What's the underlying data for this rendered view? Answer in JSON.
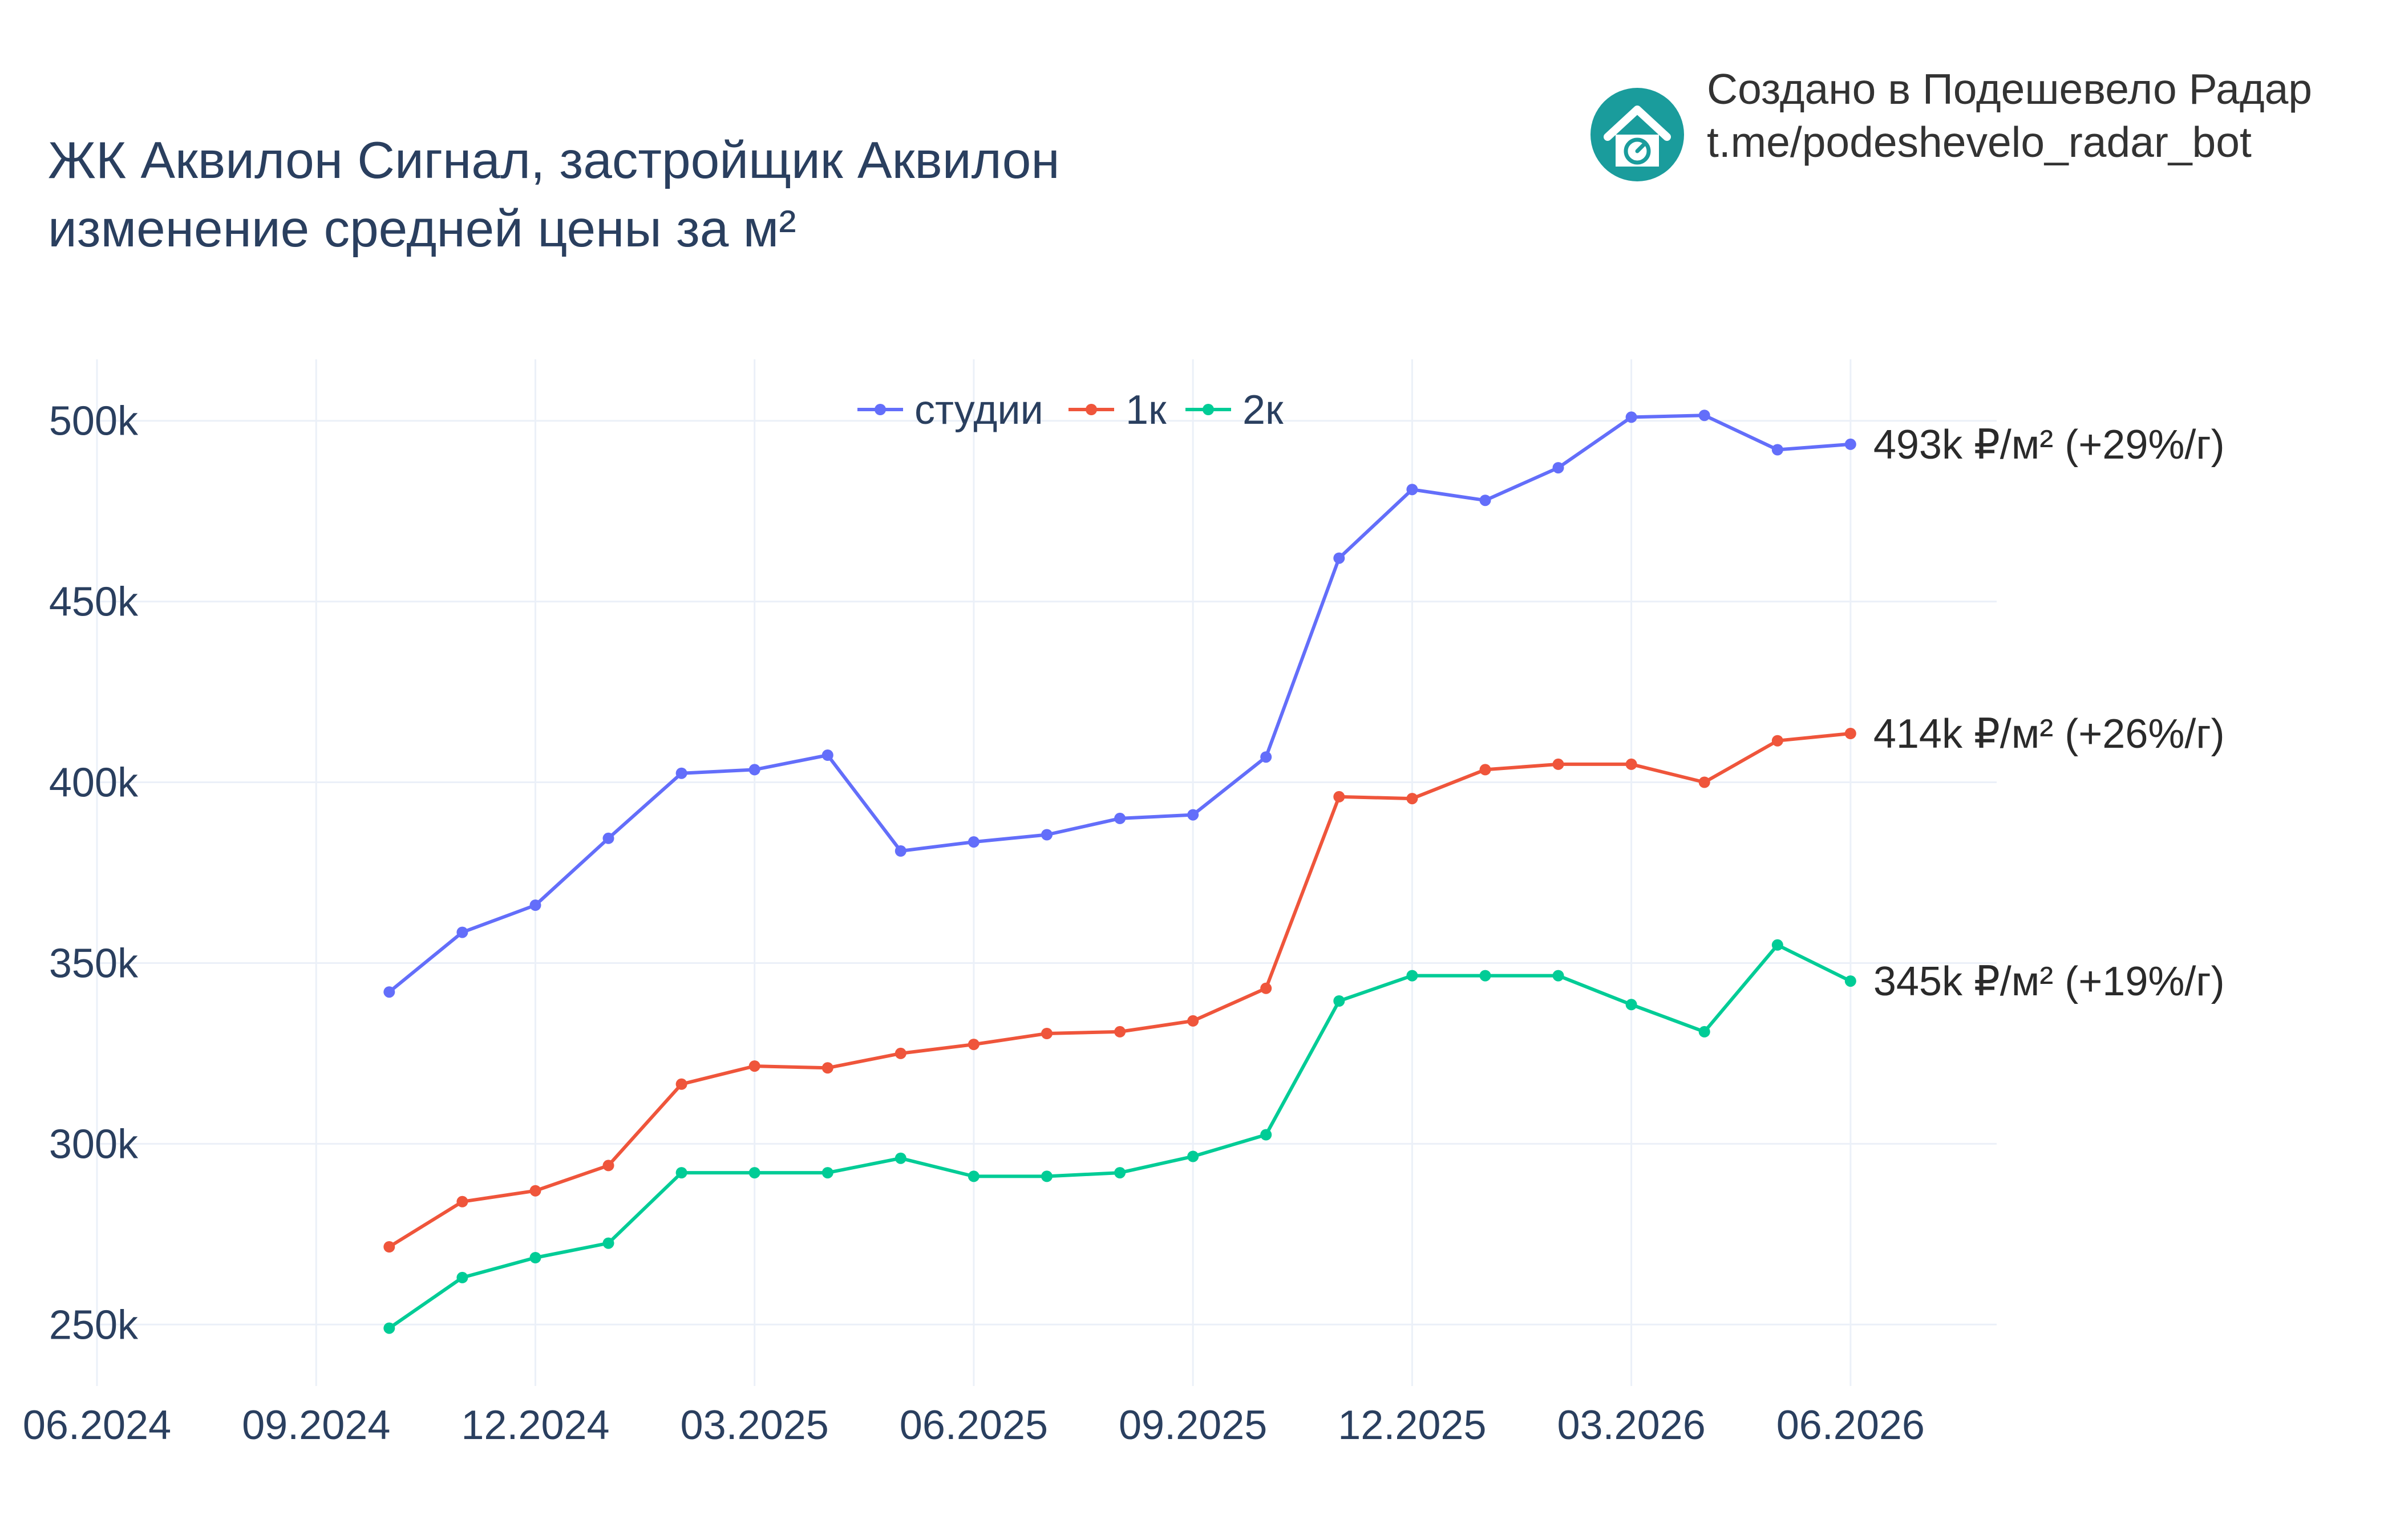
{
  "title_line1": "ЖК Аквилон Сигнал, застройщик Аквилон",
  "title_line2": "изменение средней цены за м²",
  "credit_line1": "Создано в Подешевело Радар",
  "credit_line2": "t.me/podeshevelo_radar_bot",
  "logo_icon": "house-gauge-icon",
  "logo_color": "#1a9c9c",
  "chart_data": {
    "type": "line",
    "x": [
      "2024-10",
      "2024-11",
      "2024-12",
      "2025-01",
      "2025-02",
      "2025-03",
      "2025-04",
      "2025-05",
      "2025-06",
      "2025-07",
      "2025-08",
      "2025-09",
      "2025-10",
      "2025-11",
      "2025-12",
      "2026-01",
      "2026-02",
      "2026-03",
      "2026-04",
      "2026-05",
      "2026-06"
    ],
    "series": [
      {
        "name": "студии",
        "color": "#636efa",
        "values": [
          342,
          358.5,
          366,
          384.5,
          402.5,
          403.5,
          407.5,
          381,
          383.5,
          385.5,
          390,
          391,
          407,
          462,
          481,
          478,
          487,
          501,
          501.5,
          492,
          493.5
        ],
        "end_label": "493k ₽/м² (+29%/г)"
      },
      {
        "name": "1к",
        "color": "#ef553b",
        "values": [
          271.5,
          284,
          287,
          294,
          316.5,
          321.5,
          321,
          325,
          327.5,
          330.5,
          331,
          334,
          343,
          396,
          395.5,
          403.5,
          405,
          405,
          400,
          411.5,
          413.5
        ],
        "end_label": "414k ₽/м² (+26%/г)"
      },
      {
        "name": "2к",
        "color": "#00cc96",
        "values": [
          249,
          263,
          268.5,
          272.5,
          292,
          292,
          292,
          296,
          291,
          291,
          292,
          296.5,
          302.5,
          339.5,
          346.5,
          346.5,
          346.5,
          338.5,
          331,
          355,
          345
        ],
        "end_label": "345k ₽/м² (+19%/г)"
      }
    ],
    "x_ticks": [
      {
        "value": "2024-06",
        "label": "06.2024"
      },
      {
        "value": "2024-09",
        "label": "09.2024"
      },
      {
        "value": "2024-12",
        "label": "12.2024"
      },
      {
        "value": "2025-03",
        "label": "03.2025"
      },
      {
        "value": "2025-06",
        "label": "06.2025"
      },
      {
        "value": "2025-09",
        "label": "09.2025"
      },
      {
        "value": "2025-12",
        "label": "12.2025"
      },
      {
        "value": "2026-03",
        "label": "03.2026"
      },
      {
        "value": "2026-06",
        "label": "06.2026"
      }
    ],
    "y_ticks": [
      {
        "value": 250,
        "label": "250k"
      },
      {
        "value": 300,
        "label": "300k"
      },
      {
        "value": 350,
        "label": "350k"
      },
      {
        "value": 400,
        "label": "400k"
      },
      {
        "value": 450,
        "label": "450k"
      },
      {
        "value": 500,
        "label": "500k"
      }
    ],
    "xlim": [
      "2024-06",
      "2026-08"
    ],
    "ylim": [
      233,
      517
    ],
    "grid": true,
    "legend": "top-center"
  }
}
